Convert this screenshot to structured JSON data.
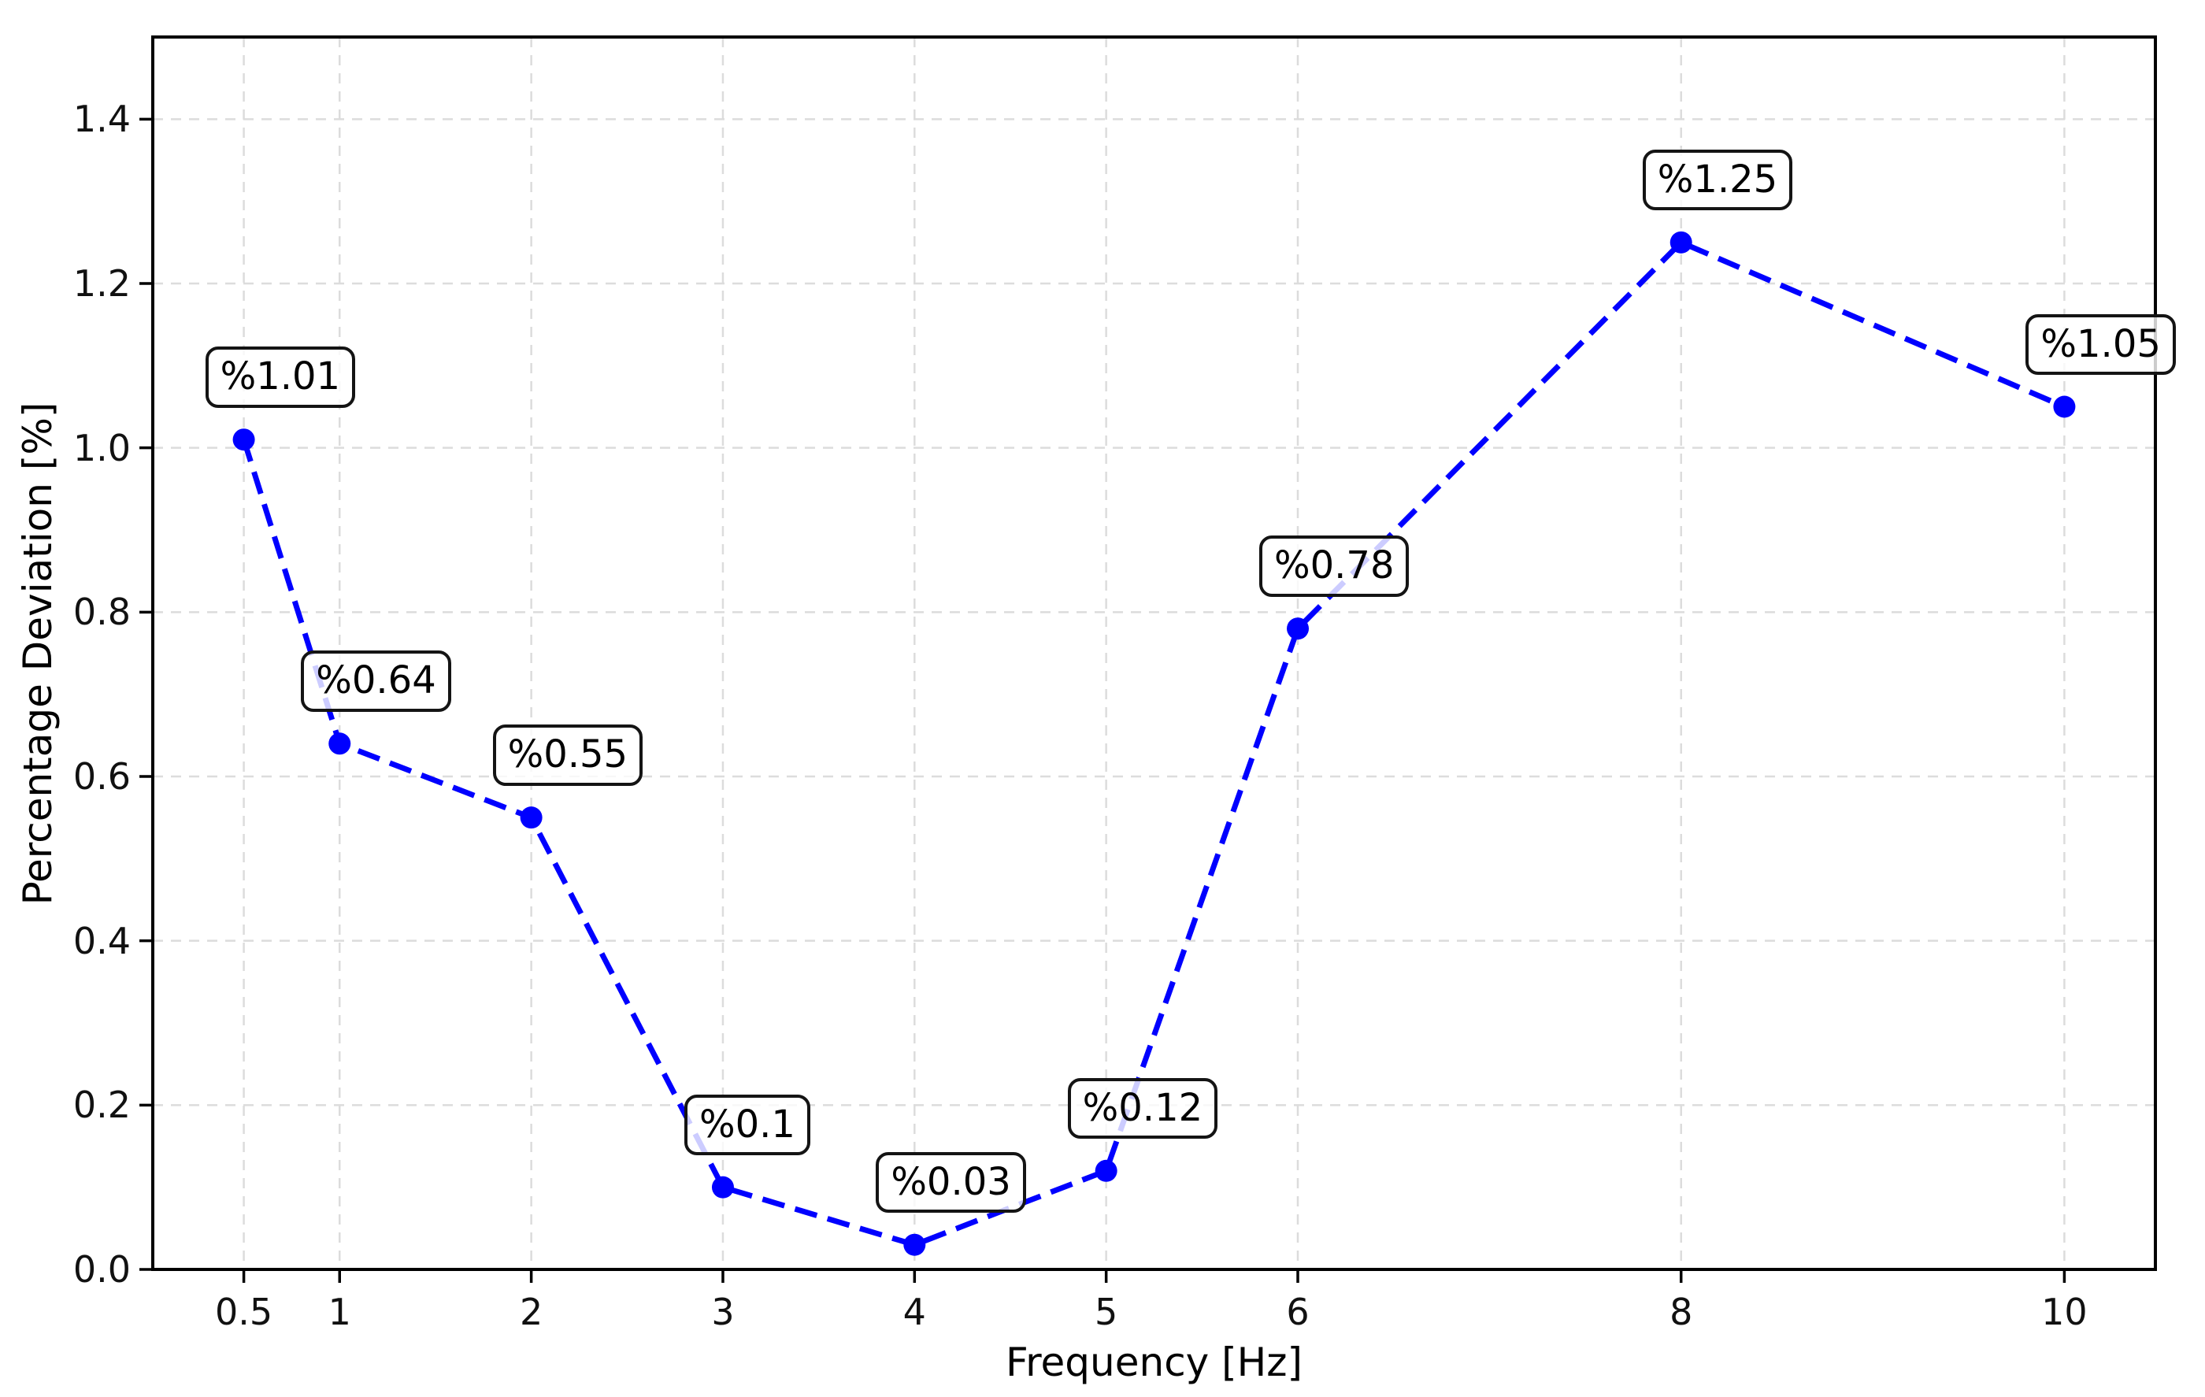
{
  "chart_data": {
    "type": "line",
    "title": "",
    "xlabel": "Frequency [Hz]",
    "ylabel": "Percentage Deviation [%]",
    "x": [
      0.5,
      1,
      2,
      3,
      4,
      5,
      6,
      8,
      10
    ],
    "y": [
      1.01,
      0.64,
      0.55,
      0.1,
      0.03,
      0.12,
      0.78,
      1.25,
      1.05
    ],
    "point_labels": [
      "%1.01",
      "%0.64",
      "%0.55",
      "%0.1",
      "%0.03",
      "%0.12",
      "%0.78",
      "%1.25",
      "%1.05"
    ],
    "xticks": {
      "values": [
        0.5,
        1,
        2,
        3,
        4,
        5,
        6,
        8,
        10
      ],
      "labels": [
        "0.5",
        "1",
        "2",
        "3",
        "4",
        "5",
        "6",
        "8",
        "10"
      ]
    },
    "yticks": {
      "values": [
        0.0,
        0.2,
        0.4,
        0.6,
        0.8,
        1.0,
        1.2,
        1.4
      ],
      "labels": [
        "0.0",
        "0.2",
        "0.4",
        "0.6",
        "0.8",
        "1.0",
        "1.2",
        "1.4"
      ]
    },
    "xlim": [
      0.025,
      10.475
    ],
    "ylim": [
      0,
      1.5
    ],
    "grid": true,
    "legend": false,
    "line_style": "dashed",
    "marker": "circle",
    "colors": {
      "line": "#0000ff",
      "marker": "#0000ff",
      "grid": "#dcdcdc",
      "spine": "#000000",
      "tick_text": "#111111",
      "annotation_border": "#141414",
      "annotation_bg": "rgba(255,255,255,0.8)"
    }
  }
}
